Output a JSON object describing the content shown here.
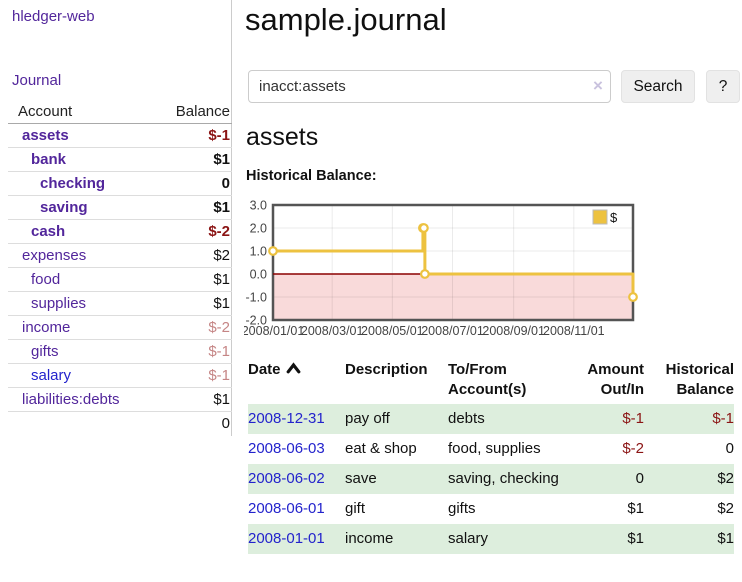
{
  "colors": {
    "link_purple": "#52269b",
    "link_blue": "#2323cc",
    "negative_strong": "#8b1414",
    "negative_soft": "#c58585",
    "chart_gold": "#edc240",
    "chart_negative_fill": "#f9dada",
    "chart_zero_line": "#8b0000",
    "chart_border": "#545454",
    "row_stripe_green": "#ddeedd"
  },
  "sidebar": {
    "app_title": "hledger-web",
    "journal_link": "Journal",
    "table": {
      "account_header": "Account",
      "balance_header": "Balance",
      "rows": [
        {
          "name": "assets",
          "indent": 1,
          "balance": "$-1",
          "emph": true,
          "balance_tone": "negative-strong"
        },
        {
          "name": "bank",
          "indent": 2,
          "balance": "$1",
          "emph": true,
          "balance_tone": "normal"
        },
        {
          "name": "checking",
          "indent": 3,
          "balance": "0",
          "emph": true,
          "balance_tone": "normal"
        },
        {
          "name": "saving",
          "indent": 3,
          "balance": "$1",
          "emph": true,
          "balance_tone": "normal"
        },
        {
          "name": "cash",
          "indent": 2,
          "balance": "$-2",
          "emph": true,
          "balance_tone": "negative-strong"
        },
        {
          "name": "expenses",
          "indent": 1,
          "balance": "$2",
          "emph": false,
          "balance_tone": "normal"
        },
        {
          "name": "food",
          "indent": 2,
          "balance": "$1",
          "emph": false,
          "balance_tone": "normal"
        },
        {
          "name": "supplies",
          "indent": 2,
          "balance": "$1",
          "emph": false,
          "balance_tone": "normal"
        },
        {
          "name": "income",
          "indent": 1,
          "balance": "$-2",
          "emph": false,
          "balance_tone": "negative-soft"
        },
        {
          "name": "gifts",
          "indent": 2,
          "balance": "$-1",
          "emph": false,
          "balance_tone": "negative-soft"
        },
        {
          "name": "salary",
          "indent": 2,
          "balance": "$-1",
          "emph": false,
          "balance_tone": "negative-soft",
          "link_tone": "blue"
        },
        {
          "name": "liabilities:debts",
          "indent": 1,
          "balance": "$1",
          "emph": false,
          "balance_tone": "normal"
        }
      ],
      "total": "0"
    }
  },
  "main": {
    "page_title": "sample.journal",
    "search": {
      "value": "inacct:assets",
      "clear_label": "×",
      "search_button": "Search",
      "help_button": "?"
    },
    "account_title": "assets",
    "chart_heading": "Historical Balance:"
  },
  "chart_data": {
    "type": "line",
    "step": true,
    "title": "Historical Balance",
    "legend": [
      {
        "label": "$",
        "color": "#edc240"
      }
    ],
    "legend_position": "top-right",
    "grid": true,
    "ylim": [
      -2.0,
      3.0
    ],
    "y_ticks": [
      3.0,
      2.0,
      1.0,
      0.0,
      -1.0,
      -2.0
    ],
    "x_range_days": [
      0,
      365
    ],
    "x_ticks": {
      "days": [
        0,
        60,
        121,
        182,
        244,
        305
      ],
      "labels": [
        "2008/01/01",
        "2008/03/01",
        "2008/05/01",
        "2008/07/01",
        "2008/09/01",
        "2008/11/01"
      ]
    },
    "points": [
      {
        "date": "2008-01-01",
        "day": 0,
        "value": 1
      },
      {
        "date": "2008-06-01",
        "day": 152,
        "value": 2
      },
      {
        "date": "2008-06-02",
        "day": 153,
        "value": 2
      },
      {
        "date": "2008-06-03",
        "day": 154,
        "value": 0
      },
      {
        "date": "2008-12-31",
        "day": 365,
        "value": -1
      }
    ],
    "negative_region_shaded": true,
    "zero_line": true
  },
  "register": {
    "headers": {
      "date": "Date",
      "description": "Description",
      "accounts": "To/From Account(s)",
      "amount": "Amount Out/In",
      "balance": "Historical Balance"
    },
    "sort_icon": "sort-ascending",
    "rows": [
      {
        "date": "2008-12-31",
        "description": "pay off",
        "accounts": "debts",
        "amount": "$-1",
        "amount_tone": "negative",
        "balance": "$-1",
        "balance_tone": "negative"
      },
      {
        "date": "2008-06-03",
        "description": "eat & shop",
        "accounts": "food, supplies",
        "amount": "$-2",
        "amount_tone": "negative",
        "balance": "0",
        "balance_tone": "normal"
      },
      {
        "date": "2008-06-02",
        "description": "save",
        "accounts": "saving, checking",
        "amount": "0",
        "amount_tone": "normal",
        "balance": "$2",
        "balance_tone": "normal"
      },
      {
        "date": "2008-06-01",
        "description": "gift",
        "accounts": "gifts",
        "amount": "$1",
        "amount_tone": "normal",
        "balance": "$2",
        "balance_tone": "normal"
      },
      {
        "date": "2008-01-01",
        "description": "income",
        "accounts": "salary",
        "amount": "$1",
        "amount_tone": "normal",
        "balance": "$1",
        "balance_tone": "normal"
      }
    ]
  }
}
